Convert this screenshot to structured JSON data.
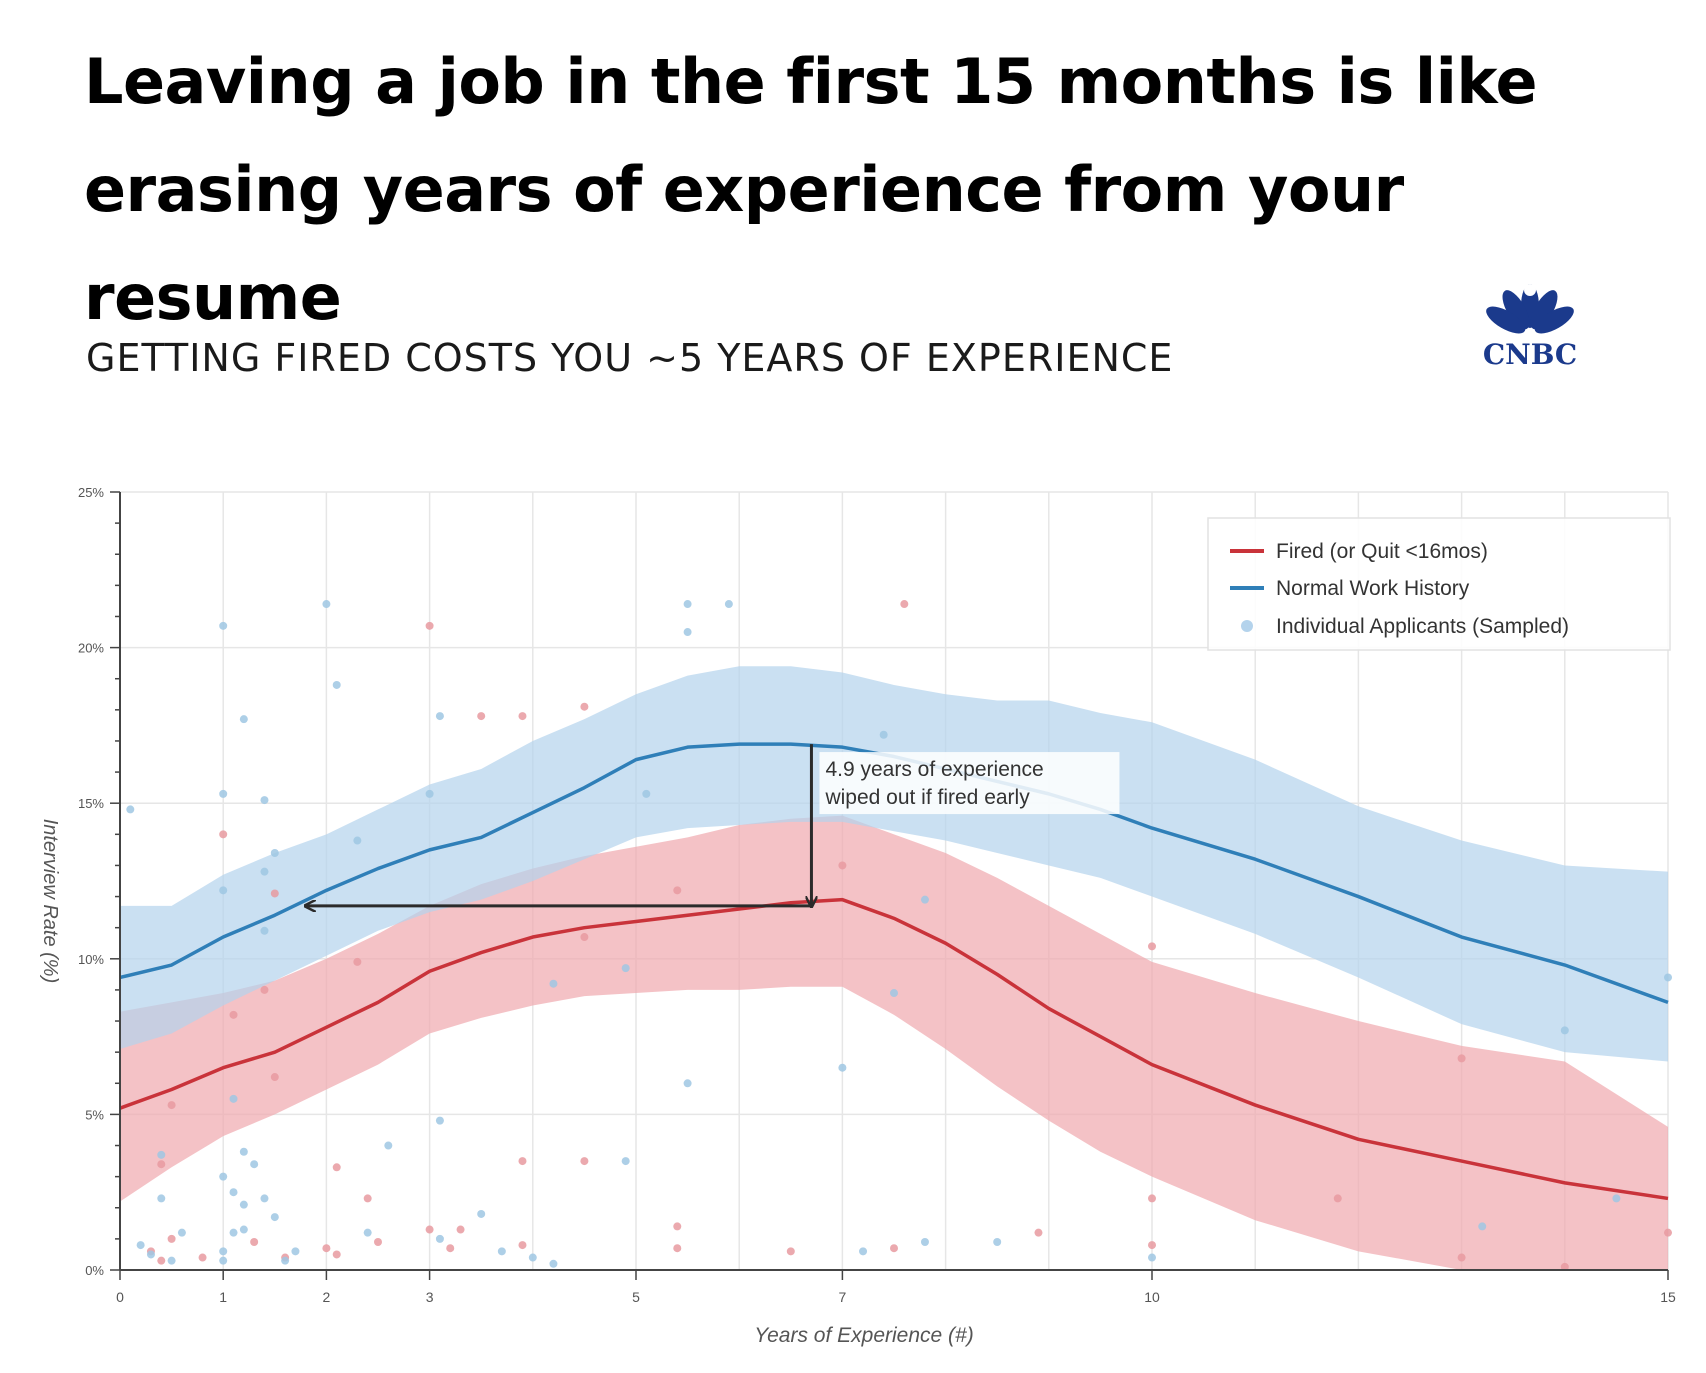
{
  "header": {
    "title": "Leaving a job in the first 15 months is like erasing years of experience from your resume",
    "subtitle": "GETTING FIRED COSTS YOU ~5 YEARS OF EXPERIENCE",
    "logo_text": "CNBC",
    "logo_color": "#1b3a8c"
  },
  "chart_data": {
    "type": "line",
    "xlabel": "Years of Experience (#)",
    "ylabel": "Interview Rate (%)",
    "xlim": [
      0,
      15
    ],
    "ylim": [
      0,
      25
    ],
    "x_ticks": [
      0,
      1,
      2,
      3,
      5,
      7,
      10,
      15
    ],
    "y_ticks": [
      0,
      5,
      10,
      15,
      20,
      25
    ],
    "y_tick_labels": [
      "0%",
      "5%",
      "10%",
      "15%",
      "20%",
      "25%"
    ],
    "grid": true,
    "legend_position": "top-right",
    "annotation": {
      "text_lines": [
        "4.9 years of experience",
        "wiped out if fired early"
      ],
      "x": 6.7,
      "y_top": 16.9,
      "y_bottom": 11.7,
      "x_end": 1.8
    },
    "series": [
      {
        "name": "Fired (or Quit <16mos)",
        "color": "#c9333a",
        "band_color": "#f0a8ae",
        "x": [
          0,
          0.5,
          1,
          1.5,
          2,
          2.5,
          3,
          3.5,
          4,
          4.5,
          5,
          5.5,
          6,
          6.5,
          7,
          7.5,
          8,
          8.5,
          9,
          9.5,
          10,
          11,
          12,
          13,
          14,
          15
        ],
        "y": [
          5.2,
          5.8,
          6.5,
          7.0,
          7.8,
          8.6,
          9.6,
          10.2,
          10.7,
          11.0,
          11.2,
          11.4,
          11.6,
          11.8,
          11.9,
          11.3,
          10.5,
          9.5,
          8.4,
          7.5,
          6.6,
          5.3,
          4.2,
          3.5,
          2.8,
          2.3
        ],
        "lower": [
          2.2,
          3.3,
          4.3,
          5.0,
          5.8,
          6.6,
          7.6,
          8.1,
          8.5,
          8.8,
          8.9,
          9.0,
          9.0,
          9.1,
          9.1,
          8.2,
          7.1,
          5.9,
          4.8,
          3.8,
          3.0,
          1.6,
          0.6,
          0.0,
          0.0,
          0.0
        ],
        "upper": [
          8.3,
          8.6,
          8.9,
          9.3,
          10.0,
          10.8,
          11.7,
          12.4,
          12.9,
          13.3,
          13.6,
          13.9,
          14.3,
          14.5,
          14.6,
          14.0,
          13.4,
          12.6,
          11.7,
          10.8,
          9.9,
          8.9,
          8.0,
          7.2,
          6.7,
          4.6
        ]
      },
      {
        "name": "Normal Work History",
        "color": "#2f7fb8",
        "band_color": "#b4d3ec",
        "x": [
          0,
          0.5,
          1,
          1.5,
          2,
          2.5,
          3,
          3.5,
          4,
          4.5,
          5,
          5.5,
          6,
          6.5,
          7,
          7.5,
          8,
          8.5,
          9,
          9.5,
          10,
          11,
          12,
          13,
          14,
          15
        ],
        "y": [
          9.4,
          9.8,
          10.7,
          11.4,
          12.2,
          12.9,
          13.5,
          13.9,
          14.7,
          15.5,
          16.4,
          16.8,
          16.9,
          16.9,
          16.8,
          16.5,
          16.1,
          15.7,
          15.3,
          14.8,
          14.2,
          13.2,
          12.0,
          10.7,
          9.8,
          8.6
        ],
        "lower": [
          7.1,
          7.6,
          8.5,
          9.3,
          10.1,
          10.9,
          11.5,
          11.9,
          12.5,
          13.2,
          13.9,
          14.2,
          14.3,
          14.4,
          14.4,
          14.1,
          13.8,
          13.4,
          13.0,
          12.6,
          12.0,
          10.8,
          9.4,
          7.9,
          7.0,
          6.7
        ],
        "upper": [
          11.7,
          11.7,
          12.7,
          13.4,
          14.0,
          14.8,
          15.6,
          16.1,
          17.0,
          17.7,
          18.5,
          19.1,
          19.4,
          19.4,
          19.2,
          18.8,
          18.5,
          18.3,
          18.3,
          17.9,
          17.6,
          16.4,
          14.9,
          13.8,
          13.0,
          12.8
        ]
      }
    ],
    "scatter": {
      "name": "Individual Applicants (Sampled)",
      "legend_color": "#b4d3ec",
      "fired_color": "#e89aa0",
      "normal_color": "#9fc7e3",
      "fired_points": [
        [
          1.0,
          14.0
        ],
        [
          1.1,
          8.2
        ],
        [
          1.4,
          9.0
        ],
        [
          1.5,
          12.1
        ],
        [
          1.5,
          6.2
        ],
        [
          0.5,
          5.3
        ],
        [
          0.4,
          3.4
        ],
        [
          0.3,
          0.6
        ],
        [
          0.4,
          0.3
        ],
        [
          0.5,
          1.0
        ],
        [
          0.8,
          0.4
        ],
        [
          1.3,
          0.9
        ],
        [
          1.6,
          0.4
        ],
        [
          2.0,
          0.7
        ],
        [
          2.1,
          0.5
        ],
        [
          2.1,
          3.3
        ],
        [
          2.4,
          2.3
        ],
        [
          2.3,
          9.9
        ],
        [
          2.5,
          0.9
        ],
        [
          3.0,
          20.7
        ],
        [
          3.0,
          1.3
        ],
        [
          3.2,
          0.7
        ],
        [
          3.3,
          1.3
        ],
        [
          3.5,
          17.8
        ],
        [
          3.9,
          17.8
        ],
        [
          3.9,
          3.5
        ],
        [
          3.9,
          0.8
        ],
        [
          4.5,
          18.1
        ],
        [
          4.5,
          10.7
        ],
        [
          4.5,
          3.5
        ],
        [
          5.4,
          12.2
        ],
        [
          5.4,
          1.4
        ],
        [
          5.4,
          0.7
        ],
        [
          6.5,
          0.6
        ],
        [
          7.0,
          13.0
        ],
        [
          7.5,
          0.7
        ],
        [
          7.6,
          21.4
        ],
        [
          8.9,
          1.2
        ],
        [
          10.0,
          10.4
        ],
        [
          10.0,
          2.3
        ],
        [
          10.0,
          0.8
        ],
        [
          11.8,
          2.3
        ],
        [
          13.0,
          6.8
        ],
        [
          13.0,
          0.4
        ],
        [
          14.0,
          0.1
        ],
        [
          15.0,
          1.2
        ]
      ],
      "normal_points": [
        [
          0.1,
          14.8
        ],
        [
          1.0,
          20.7
        ],
        [
          1.2,
          17.7
        ],
        [
          1.0,
          15.3
        ],
        [
          1.4,
          15.1
        ],
        [
          1.4,
          12.8
        ],
        [
          1.5,
          13.4
        ],
        [
          1.4,
          10.9
        ],
        [
          1.0,
          12.2
        ],
        [
          1.1,
          5.5
        ],
        [
          0.4,
          3.7
        ],
        [
          0.4,
          2.3
        ],
        [
          0.6,
          1.2
        ],
        [
          0.2,
          0.8
        ],
        [
          0.3,
          0.5
        ],
        [
          0.5,
          0.3
        ],
        [
          1.0,
          3.0
        ],
        [
          1.1,
          2.5
        ],
        [
          1.2,
          2.1
        ],
        [
          1.2,
          3.8
        ],
        [
          1.3,
          3.4
        ],
        [
          1.4,
          2.3
        ],
        [
          1.0,
          0.6
        ],
        [
          1.1,
          1.2
        ],
        [
          1.2,
          1.3
        ],
        [
          1.0,
          0.3
        ],
        [
          1.5,
          1.7
        ],
        [
          1.6,
          0.3
        ],
        [
          1.7,
          0.6
        ],
        [
          2.0,
          21.4
        ],
        [
          2.1,
          18.8
        ],
        [
          2.3,
          13.8
        ],
        [
          2.4,
          1.2
        ],
        [
          2.6,
          4.0
        ],
        [
          3.0,
          15.3
        ],
        [
          3.1,
          17.8
        ],
        [
          3.1,
          4.8
        ],
        [
          3.1,
          1.0
        ],
        [
          3.5,
          1.8
        ],
        [
          3.7,
          0.6
        ],
        [
          4.0,
          0.4
        ],
        [
          4.2,
          0.2
        ],
        [
          4.2,
          9.2
        ],
        [
          4.9,
          9.7
        ],
        [
          4.9,
          3.5
        ],
        [
          5.1,
          15.3
        ],
        [
          5.5,
          21.4
        ],
        [
          5.5,
          20.5
        ],
        [
          5.5,
          6.0
        ],
        [
          5.9,
          21.4
        ],
        [
          7.0,
          6.5
        ],
        [
          7.2,
          0.6
        ],
        [
          7.4,
          17.2
        ],
        [
          7.5,
          8.9
        ],
        [
          7.8,
          11.9
        ],
        [
          7.8,
          0.9
        ],
        [
          8.5,
          0.9
        ],
        [
          10.0,
          0.4
        ],
        [
          14.0,
          7.7
        ],
        [
          14.5,
          2.3
        ],
        [
          15.0,
          9.4
        ],
        [
          13.2,
          1.4
        ]
      ]
    }
  }
}
